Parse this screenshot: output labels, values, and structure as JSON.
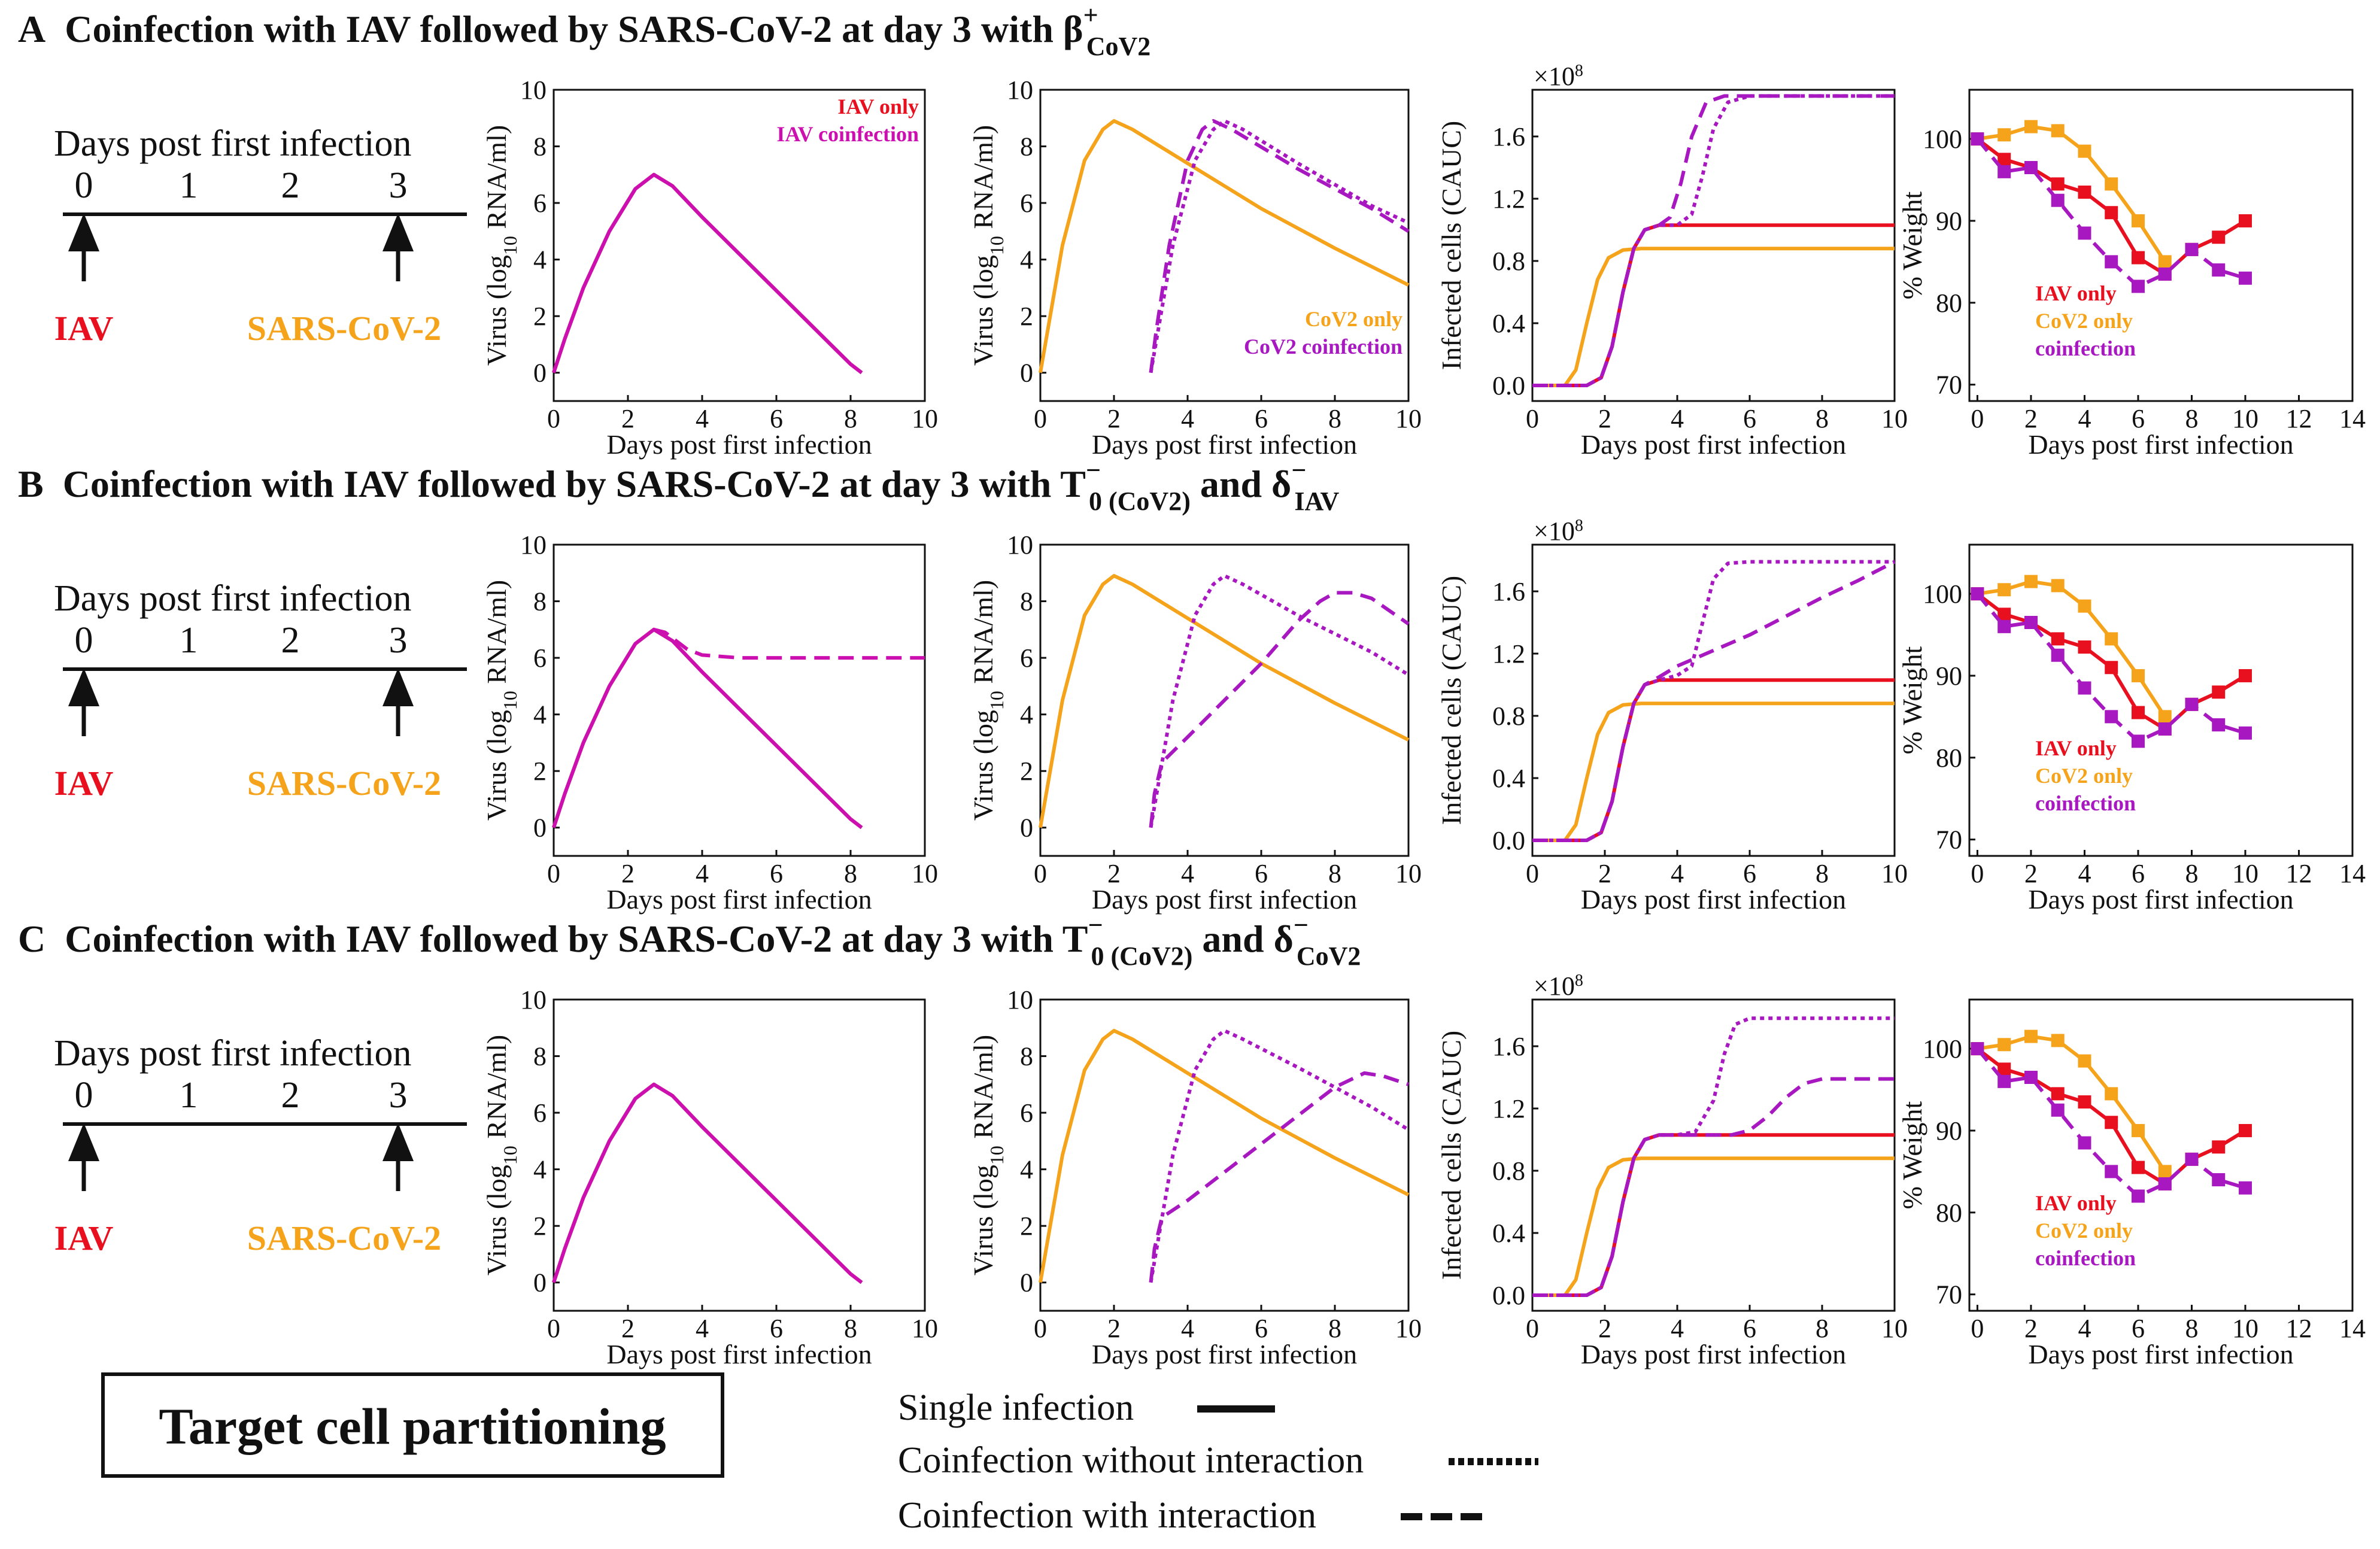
{
  "colors": {
    "iav": "#e8101e",
    "cov2": "#f5a31a",
    "coinf": "#a818c0",
    "iav_coinf": "#cc10b0",
    "ink": "#111111"
  },
  "common": {
    "days_post_first_infection": "Days post first infection",
    "virus_ylabel_pre": "Virus (log",
    "virus_ylabel_sub": "10",
    "virus_ylabel_post": " RNA/ml)",
    "infected_ylabel": "Infected cells (CAUC)",
    "weight_ylabel": "% Weight",
    "x10_base": "×10",
    "x10_exp": "8",
    "timeline_days": [
      "0",
      "1",
      "2",
      "3"
    ],
    "iav_label": "IAV",
    "cov2_label": "SARS-CoV-2",
    "leg_iav_only": "IAV only",
    "leg_iav_coinf": "IAV coinfection",
    "leg_cov2_only": "CoV2 only",
    "leg_cov2_coinf": "CoV2 coinfection",
    "leg_w_iav": "IAV only",
    "leg_w_cov2": "CoV2 only",
    "leg_w_coinf": "coinfection"
  },
  "panels": [
    {
      "letter": "A",
      "title_text": "Coinfection with IAV followed by SARS-CoV-2 at day 3 with ",
      "sym1": "β",
      "sym1_sup": "+",
      "sym1_sub": "CoV2",
      "joiner": "",
      "sym2": "",
      "sym2_sup": "",
      "sym2_sub": ""
    },
    {
      "letter": "B",
      "title_text": "Coinfection with IAV followed by SARS-CoV-2 at day 3 with ",
      "sym1": "T",
      "sym1_sup": "−",
      "sym1_sub": "0 (CoV2)",
      "joiner": " and ",
      "sym2": "δ",
      "sym2_sup": "−",
      "sym2_sub": "IAV"
    },
    {
      "letter": "C",
      "title_text": "Coinfection with IAV followed by SARS-CoV-2 at day 3 with ",
      "sym1": "T",
      "sym1_sup": "−",
      "sym1_sub": "0 (CoV2)",
      "joiner": " and ",
      "sym2": "δ",
      "sym2_sup": "−",
      "sym2_sub": "CoV2"
    }
  ],
  "footer": {
    "box_label": "Target cell partitioning",
    "key_single": "Single infection",
    "key_no_interaction": "Coinfection without interaction",
    "key_interaction": "Coinfection with interaction"
  },
  "chart_data": [
    {
      "type": "line",
      "id": "iav_virus",
      "xlabel": "Days post first infection",
      "ylabel": "Virus (log10 RNA/ml)",
      "xlim": [
        0,
        10
      ],
      "ylim": [
        -1,
        10
      ],
      "xticks": [
        0,
        2,
        4,
        6,
        8,
        10
      ],
      "yticks": [
        0,
        2,
        4,
        6,
        8,
        10
      ],
      "series": [
        {
          "name": "IAV only",
          "color": "iav",
          "style": "solid",
          "x": [
            0,
            0.3,
            0.8,
            1.5,
            2.2,
            2.7,
            3.2,
            4.0,
            5.0,
            6.0,
            7.0,
            8.0,
            8.3
          ],
          "y": [
            0,
            1.2,
            3.0,
            5.0,
            6.5,
            7.0,
            6.6,
            5.5,
            4.2,
            2.9,
            1.6,
            0.3,
            0
          ]
        },
        {
          "name": "IAV coinfection A",
          "color": "iav_coinf",
          "style": "solid",
          "x": [
            0,
            0.3,
            0.8,
            1.5,
            2.2,
            2.7,
            3.2,
            4.0,
            5.0,
            6.0,
            7.0,
            8.0,
            8.3
          ],
          "y": [
            0,
            1.2,
            3.0,
            5.0,
            6.5,
            7.0,
            6.6,
            5.5,
            4.2,
            2.9,
            1.6,
            0.3,
            0
          ]
        },
        {
          "name": "IAV coinfection B (with interaction)",
          "color": "iav_coinf",
          "style": "dashed",
          "x": [
            2.7,
            3.0,
            3.3,
            3.6,
            4.0,
            5.0,
            6.0,
            8.0,
            10.0
          ],
          "y": [
            7.0,
            6.9,
            6.6,
            6.3,
            6.1,
            6.0,
            6.0,
            6.0,
            6.0
          ]
        }
      ]
    },
    {
      "type": "line",
      "id": "cov2_virus",
      "xlabel": "Days post first infection",
      "ylabel": "Virus (log10 RNA/ml)",
      "xlim": [
        0,
        10
      ],
      "ylim": [
        -1,
        10
      ],
      "xticks": [
        0,
        2,
        4,
        6,
        8,
        10
      ],
      "yticks": [
        0,
        2,
        4,
        6,
        8,
        10
      ],
      "series": [
        {
          "name": "CoV2 only",
          "color": "cov2",
          "style": "solid",
          "x": [
            0,
            0.2,
            0.6,
            1.2,
            1.7,
            2.0,
            2.5,
            4.0,
            6.0,
            8.0,
            10.0
          ],
          "y": [
            0,
            1.5,
            4.5,
            7.5,
            8.6,
            8.9,
            8.6,
            7.4,
            5.8,
            4.4,
            3.1
          ]
        },
        {
          "name": "CoV2 coinfection A (no interaction)",
          "color": "coinf",
          "style": "dotted",
          "x": [
            3.0,
            3.2,
            3.6,
            4.2,
            4.7,
            5.0,
            5.5,
            7.0,
            9.0,
            10.0
          ],
          "y": [
            0,
            1.5,
            4.5,
            7.5,
            8.6,
            8.9,
            8.6,
            7.4,
            5.9,
            5.3
          ]
        },
        {
          "name": "CoV2 coinfection A (interaction)",
          "color": "coinf",
          "style": "dashed",
          "x": [
            3.0,
            3.15,
            3.5,
            4.0,
            4.4,
            4.7,
            5.2,
            7.0,
            9.0,
            10.0
          ],
          "y": [
            0,
            1.5,
            4.5,
            7.5,
            8.6,
            8.9,
            8.6,
            7.2,
            5.8,
            5.0
          ]
        },
        {
          "name": "CoV2 coinfection B (no interaction)",
          "color": "coinf",
          "style": "dotted",
          "x": [
            3.0,
            3.2,
            3.6,
            4.2,
            4.7,
            5.0,
            5.5,
            7.0,
            9.0,
            10.0
          ],
          "y": [
            0,
            1.5,
            4.5,
            7.5,
            8.6,
            8.9,
            8.6,
            7.5,
            6.2,
            5.4
          ]
        },
        {
          "name": "CoV2 coinfection B (interaction)",
          "color": "coinf",
          "style": "dashed",
          "x": [
            3.0,
            3.1,
            3.3,
            4.0,
            5.0,
            6.0,
            7.0,
            7.6,
            8.0,
            8.5,
            9.0,
            10.0
          ],
          "y": [
            0,
            1.2,
            2.3,
            3.2,
            4.5,
            5.8,
            7.3,
            8.0,
            8.3,
            8.3,
            8.1,
            7.2
          ]
        },
        {
          "name": "CoV2 coinfection C (no interaction)",
          "color": "coinf",
          "style": "dotted",
          "x": [
            3.0,
            3.2,
            3.6,
            4.2,
            4.7,
            5.0,
            5.5,
            7.0,
            9.0,
            10.0
          ],
          "y": [
            0,
            1.5,
            4.5,
            7.5,
            8.6,
            8.9,
            8.6,
            7.6,
            6.2,
            5.4
          ]
        },
        {
          "name": "CoV2 coinfection C (interaction)",
          "color": "coinf",
          "style": "dashed",
          "x": [
            3.0,
            3.1,
            3.3,
            4.0,
            5.0,
            6.0,
            7.0,
            8.0,
            8.8,
            9.3,
            10.0
          ],
          "y": [
            0,
            1.2,
            2.3,
            2.9,
            3.9,
            4.9,
            5.9,
            6.9,
            7.4,
            7.3,
            7.0
          ]
        }
      ]
    },
    {
      "type": "line",
      "id": "infected_cells",
      "xlabel": "Days post first infection",
      "ylabel": "Infected cells (CAUC)",
      "y_multiplier": "×10^8",
      "xlim": [
        0,
        10
      ],
      "ylim": [
        -0.1,
        1.9
      ],
      "xticks": [
        0,
        2,
        4,
        6,
        8,
        10
      ],
      "yticks": [
        0.0,
        0.4,
        0.8,
        1.2,
        1.6
      ],
      "series": [
        {
          "name": "IAV only",
          "color": "iav",
          "style": "solid",
          "x": [
            0,
            1.5,
            1.9,
            2.2,
            2.5,
            2.8,
            3.1,
            3.5,
            4.0,
            10.0
          ],
          "y": [
            0,
            0,
            0.05,
            0.25,
            0.6,
            0.88,
            1.0,
            1.03,
            1.03,
            1.03
          ]
        },
        {
          "name": "CoV2 only",
          "color": "cov2",
          "style": "solid",
          "x": [
            0,
            0.9,
            1.2,
            1.5,
            1.8,
            2.1,
            2.5,
            3.0,
            10.0
          ],
          "y": [
            0,
            0,
            0.1,
            0.4,
            0.68,
            0.82,
            0.87,
            0.88,
            0.88
          ]
        },
        {
          "name": "Coinfection A (no interaction)",
          "color": "coinf",
          "style": "dotted",
          "x": [
            0,
            1.5,
            1.9,
            2.2,
            2.5,
            2.8,
            3.1,
            3.5,
            4.0,
            4.4,
            4.7,
            5.0,
            5.4,
            6.0,
            10.0
          ],
          "y": [
            0,
            0,
            0.05,
            0.25,
            0.6,
            0.88,
            1.0,
            1.03,
            1.03,
            1.1,
            1.35,
            1.65,
            1.82,
            1.86,
            1.86
          ]
        },
        {
          "name": "Coinfection A (interaction)",
          "color": "coinf",
          "style": "dashed",
          "x": [
            0,
            1.5,
            1.9,
            2.2,
            2.5,
            2.8,
            3.1,
            3.5,
            3.8,
            4.1,
            4.4,
            4.8,
            5.3,
            10.0
          ],
          "y": [
            0,
            0,
            0.05,
            0.25,
            0.6,
            0.88,
            1.0,
            1.03,
            1.08,
            1.3,
            1.6,
            1.82,
            1.86,
            1.86
          ]
        },
        {
          "name": "Coinfection B (no interaction)",
          "color": "coinf",
          "style": "dotted",
          "x": [
            0,
            1.5,
            1.9,
            2.2,
            2.5,
            2.8,
            3.1,
            3.5,
            4.0,
            4.4,
            4.7,
            5.0,
            5.4,
            6.0,
            10.0
          ],
          "y": [
            0,
            0,
            0.05,
            0.25,
            0.6,
            0.88,
            1.0,
            1.03,
            1.06,
            1.12,
            1.4,
            1.68,
            1.78,
            1.79,
            1.79
          ]
        },
        {
          "name": "Coinfection B (interaction)",
          "color": "coinf",
          "style": "dashed",
          "x": [
            0,
            1.5,
            1.9,
            2.2,
            2.5,
            2.8,
            3.1,
            3.5,
            4.0,
            5.0,
            6.0,
            7.0,
            8.0,
            9.0,
            10.0
          ],
          "y": [
            0,
            0,
            0.05,
            0.25,
            0.6,
            0.88,
            1.0,
            1.05,
            1.12,
            1.22,
            1.32,
            1.44,
            1.56,
            1.67,
            1.79
          ]
        },
        {
          "name": "Coinfection C (no interaction)",
          "color": "coinf",
          "style": "dotted",
          "x": [
            0,
            1.5,
            1.9,
            2.2,
            2.5,
            2.8,
            3.1,
            3.5,
            4.0,
            4.5,
            5.0,
            5.3,
            5.6,
            6.0,
            10.0
          ],
          "y": [
            0,
            0,
            0.05,
            0.25,
            0.6,
            0.88,
            1.0,
            1.03,
            1.03,
            1.05,
            1.25,
            1.55,
            1.74,
            1.78,
            1.78
          ]
        },
        {
          "name": "Coinfection C (interaction)",
          "color": "coinf",
          "style": "dashed",
          "x": [
            0,
            1.5,
            1.9,
            2.2,
            2.5,
            2.8,
            3.1,
            3.5,
            5.5,
            6.0,
            6.5,
            7.0,
            7.5,
            8.0,
            10.0
          ],
          "y": [
            0,
            0,
            0.05,
            0.25,
            0.6,
            0.88,
            1.0,
            1.03,
            1.03,
            1.06,
            1.15,
            1.27,
            1.36,
            1.39,
            1.39
          ]
        }
      ]
    },
    {
      "type": "line",
      "id": "weight",
      "xlabel": "Days post first infection",
      "ylabel": "% Weight",
      "xlim": [
        -0.3,
        14
      ],
      "ylim": [
        68,
        106
      ],
      "xticks": [
        0,
        2,
        4,
        6,
        8,
        10,
        12,
        14
      ],
      "yticks": [
        70,
        80,
        90,
        100
      ],
      "series": [
        {
          "name": "IAV only",
          "color": "iav",
          "style": "solid",
          "markers": true,
          "x": [
            0,
            1,
            2,
            3,
            4,
            5,
            6,
            7,
            8,
            9,
            10
          ],
          "y": [
            100,
            97.5,
            96.5,
            94.5,
            93.5,
            91,
            85.5,
            83.5,
            86.5,
            88,
            90
          ]
        },
        {
          "name": "CoV2 only",
          "color": "cov2",
          "style": "solid",
          "markers": true,
          "x": [
            0,
            1,
            2,
            3,
            4,
            5,
            6,
            7
          ],
          "y": [
            100,
            100.5,
            101.5,
            101,
            98.5,
            94.5,
            90,
            85
          ]
        },
        {
          "name": "coinfection",
          "color": "coinf",
          "style": "dashed",
          "markers": true,
          "x": [
            0,
            1,
            2,
            3,
            4,
            5,
            6,
            7,
            8,
            9,
            10
          ],
          "y": [
            100,
            96,
            96.5,
            92.5,
            88.5,
            85,
            82,
            83.5,
            86.5,
            84,
            83
          ]
        }
      ]
    }
  ]
}
